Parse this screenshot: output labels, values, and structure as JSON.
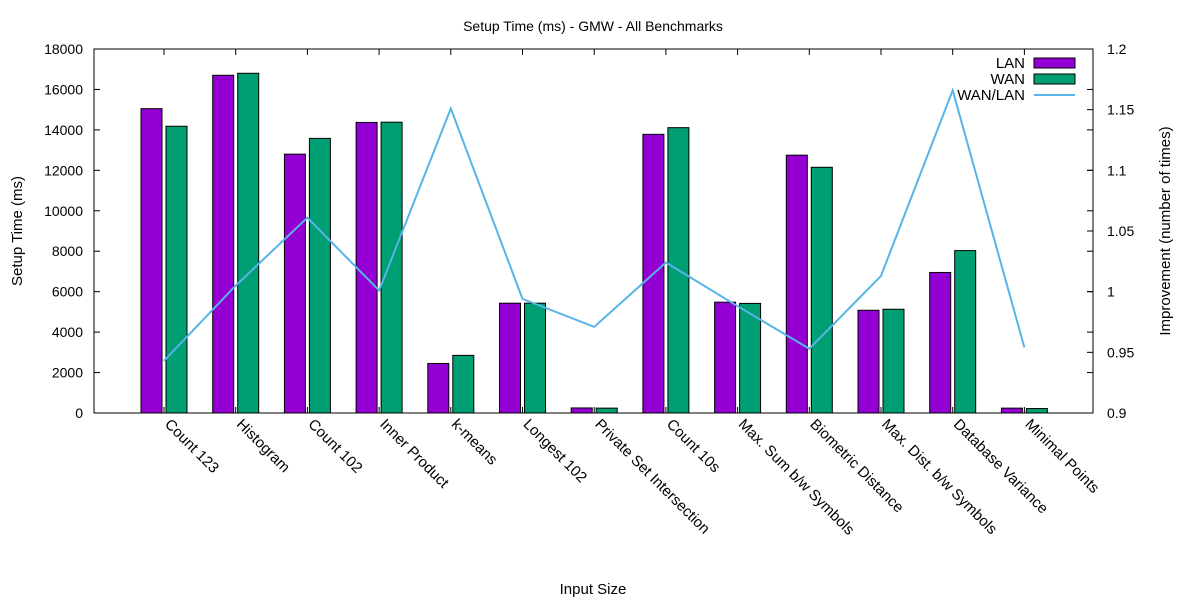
{
  "chart_data": {
    "type": "bar",
    "title": "Setup Time (ms) - GMW - All Benchmarks",
    "xlabel": "Input Size",
    "ylabel": "Setup Time (ms)",
    "y2label": "Improvement (number of times)",
    "ylim": [
      0,
      18000
    ],
    "y2lim": [
      0.9,
      1.2
    ],
    "yticks": [
      "0",
      "2000",
      "4000",
      "6000",
      "8000",
      "10000",
      "12000",
      "14000",
      "16000",
      "18000"
    ],
    "y2ticks": [
      "0.9",
      "0.95",
      "1",
      "1.05",
      "1.1",
      "1.15",
      "1.2"
    ],
    "legend_position": "top-right",
    "categories": [
      "Count 123",
      "Histogram",
      "Count 102",
      "Inner Product",
      "k-means",
      "Longest 102",
      "Private Set Intersection",
      "Count 10s",
      "Max. Sum b/w Symbols",
      "Biometric Distance",
      "Max. Dist. b/w Symbols",
      "Database Variance",
      "Minimal Points"
    ],
    "series": [
      {
        "name": "LAN",
        "kind": "bar",
        "axis": "y",
        "color": "#9400D3",
        "values": [
          15050,
          16700,
          12800,
          14370,
          2450,
          5430,
          250,
          13780,
          5480,
          12750,
          5080,
          6950,
          240
        ]
      },
      {
        "name": "WAN",
        "kind": "bar",
        "axis": "y",
        "color": "#009E73",
        "values": [
          14180,
          16800,
          13580,
          14380,
          2850,
          5430,
          240,
          14110,
          5420,
          12150,
          5130,
          8030,
          220
        ]
      },
      {
        "name": "WAN/LAN",
        "kind": "line",
        "axis": "y2",
        "color": "#56B4E9",
        "values": [
          0.943,
          1.005,
          1.061,
          1.001,
          1.151,
          0.994,
          0.971,
          1.024,
          0.988,
          0.953,
          1.013,
          1.166,
          0.954
        ]
      }
    ]
  }
}
